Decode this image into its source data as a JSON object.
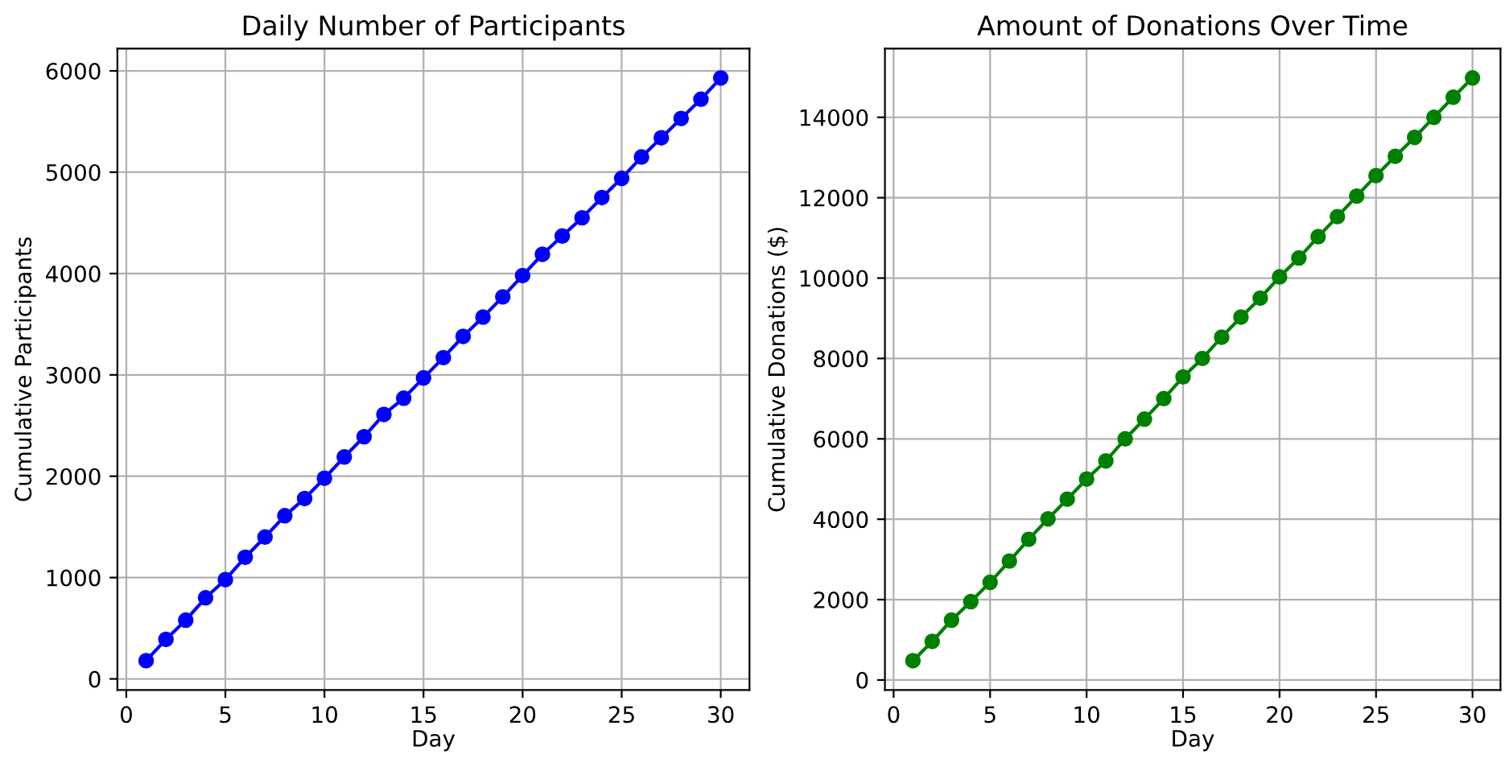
{
  "chart_data": [
    {
      "type": "line",
      "title": "Daily Number of Participants",
      "xlabel": "Day",
      "ylabel": "Cumulative Participants",
      "x": [
        1,
        2,
        3,
        4,
        5,
        6,
        7,
        8,
        9,
        10,
        11,
        12,
        13,
        14,
        15,
        16,
        17,
        18,
        19,
        20,
        21,
        22,
        23,
        24,
        25,
        26,
        27,
        28,
        29,
        30
      ],
      "series": [
        {
          "color": "#0000ff",
          "values": [
            180,
            390,
            580,
            800,
            980,
            1200,
            1400,
            1610,
            1780,
            1980,
            2190,
            2390,
            2610,
            2770,
            2970,
            3170,
            3380,
            3570,
            3770,
            3980,
            4190,
            4370,
            4550,
            4750,
            4940,
            5150,
            5340,
            5530,
            5720,
            5930
          ]
        }
      ],
      "xlim": [
        -0.45,
        31.45
      ],
      "ylim": [
        -110,
        6220
      ],
      "xticks": [
        0,
        5,
        10,
        15,
        20,
        25,
        30
      ],
      "yticks": [
        0,
        1000,
        2000,
        3000,
        4000,
        5000,
        6000
      ],
      "grid": true,
      "marker": "circle",
      "line_style": "solid",
      "legend": false
    },
    {
      "type": "line",
      "title": "Amount of Donations Over Time",
      "xlabel": "Day",
      "ylabel": "Cumulative Donations ($)",
      "x": [
        1,
        2,
        3,
        4,
        5,
        6,
        7,
        8,
        9,
        10,
        11,
        12,
        13,
        14,
        15,
        16,
        17,
        18,
        19,
        20,
        21,
        22,
        23,
        24,
        25,
        26,
        27,
        28,
        29,
        30
      ],
      "series": [
        {
          "color": "#008000",
          "values": [
            480,
            960,
            1490,
            1950,
            2430,
            2960,
            3500,
            4010,
            4500,
            5000,
            5450,
            6000,
            6490,
            7000,
            7540,
            8000,
            8530,
            9030,
            9500,
            10030,
            10500,
            11030,
            11530,
            12040,
            12550,
            13030,
            13500,
            14000,
            14500,
            14980
          ]
        }
      ],
      "xlim": [
        -0.45,
        31.45
      ],
      "ylim": [
        -250,
        15710
      ],
      "xticks": [
        0,
        5,
        10,
        15,
        20,
        25,
        30
      ],
      "yticks": [
        0,
        2000,
        4000,
        6000,
        8000,
        10000,
        12000,
        14000
      ],
      "grid": true,
      "marker": "circle",
      "line_style": "solid",
      "legend": false
    }
  ]
}
